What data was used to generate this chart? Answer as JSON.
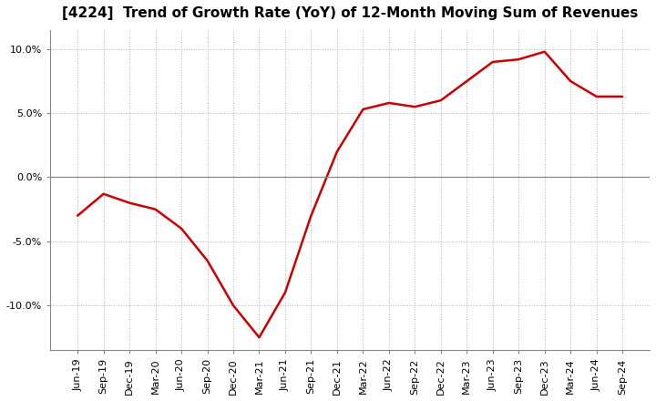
{
  "title": "[4224]  Trend of Growth Rate (YoY) of 12-Month Moving Sum of Revenues",
  "line_color": "#cc0000",
  "background_color": "#ffffff",
  "grid_color": "#aaaaaa",
  "zero_line_color": "#888888",
  "ylim": [
    -0.135,
    0.115
  ],
  "yticks": [
    -0.1,
    -0.05,
    0.0,
    0.05,
    0.1
  ],
  "x_labels": [
    "Jun-19",
    "Sep-19",
    "Dec-19",
    "Mar-20",
    "Jun-20",
    "Sep-20",
    "Dec-20",
    "Mar-21",
    "Jun-21",
    "Sep-21",
    "Dec-21",
    "Mar-22",
    "Jun-22",
    "Sep-22",
    "Dec-22",
    "Mar-23",
    "Jun-23",
    "Sep-23",
    "Dec-23",
    "Mar-24",
    "Jun-24",
    "Sep-24"
  ],
  "values": [
    -0.03,
    -0.013,
    -0.02,
    -0.025,
    -0.04,
    -0.065,
    -0.1,
    -0.125,
    -0.09,
    -0.03,
    0.02,
    0.053,
    0.058,
    0.055,
    0.06,
    0.075,
    0.09,
    0.092,
    0.098,
    0.075,
    0.063,
    0.063
  ]
}
